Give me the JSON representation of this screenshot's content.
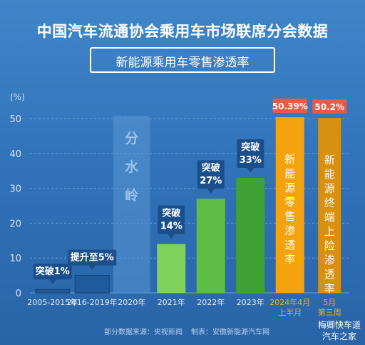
{
  "header": {
    "title": "中国汽车流通协会乘用车市场联席分会数据",
    "subtitle": "新能源乘用车零售渗透率"
  },
  "footer": {
    "source": "部分数据来源：央视新闻",
    "producer": "制表：安徽新能源汽车网"
  },
  "watermark": {
    "line1": "梅卿快车道",
    "line2": "汽车之家"
  },
  "divider_text": "分水岭",
  "chart_data": {
    "type": "bar",
    "unit_label": "(%)",
    "ylim": [
      0,
      50
    ],
    "yticks": [
      0,
      10,
      20,
      30,
      40,
      50
    ],
    "grid": true,
    "categories": [
      "2005-2015年",
      "2016-2019年",
      "2020年",
      "2021年",
      "2022年",
      "2023年",
      "2024年4月上半月",
      "5月第三周"
    ],
    "category_lines": [
      [
        "2005-2015年"
      ],
      [
        "2016-2019年"
      ],
      [
        "2020年"
      ],
      [
        "2021年"
      ],
      [
        "2022年"
      ],
      [
        "2023年"
      ],
      [
        "2024年4月",
        "上半月"
      ],
      [
        "5月",
        "第三周"
      ]
    ],
    "values": [
      1,
      5,
      null,
      14,
      27,
      33,
      50.39,
      50.2
    ],
    "callouts": [
      {
        "index": 0,
        "lines": [
          "突破1%"
        ]
      },
      {
        "index": 1,
        "lines": [
          "提升至5%"
        ]
      },
      {
        "index": 3,
        "lines": [
          "突破",
          "14%"
        ]
      },
      {
        "index": 4,
        "lines": [
          "突破",
          "27%"
        ]
      },
      {
        "index": 5,
        "lines": [
          "突破",
          "33%"
        ]
      }
    ],
    "top_labels": [
      {
        "index": 6,
        "text": "50.39%"
      },
      {
        "index": 7,
        "text": "50.2%"
      }
    ],
    "inner_labels": [
      {
        "index": 6,
        "text": "新能源零售渗透率"
      },
      {
        "index": 7,
        "text": "新能源终端上险渗透率"
      }
    ],
    "colors": {
      "early": "#1f5a9c",
      "green_light": "#7fd35c",
      "green_mid": "#5dbd45",
      "green_dark": "#3fa235",
      "orange": "#f5a20f",
      "orange_dark": "#d8900f",
      "callout": "#1b4f8c",
      "top_label": "#e85a45",
      "highlight_text": "#f6b21c"
    }
  }
}
